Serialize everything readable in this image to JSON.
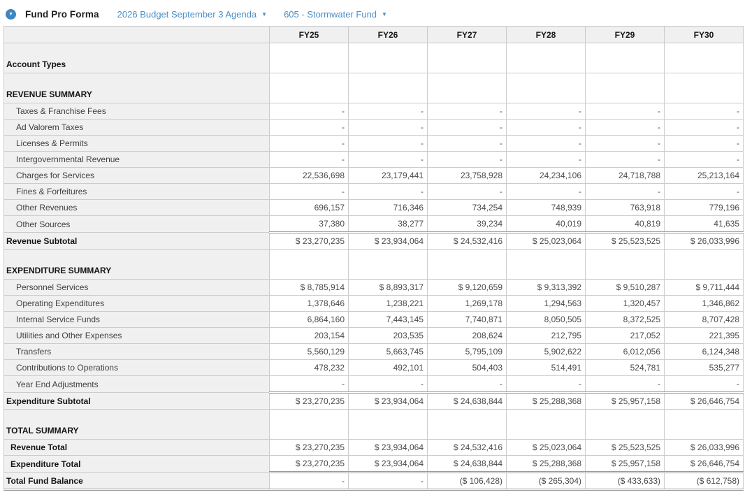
{
  "colors": {
    "accent_blue": "#4a8ec6",
    "icon_blue": "#3e86c2",
    "label_column_bg": "#f0f0f0",
    "grid_border": "#cccccc"
  },
  "header": {
    "title": "Fund Pro Forma",
    "collapse_icon": "chevron-down-circle",
    "dropdowns": [
      {
        "label": "2026 Budget September 3 Agenda"
      },
      {
        "label": "605 - Stormwater Fund"
      }
    ]
  },
  "table": {
    "columns": [
      "FY25",
      "FY26",
      "FY27",
      "FY28",
      "FY29",
      "FY30"
    ],
    "rows": [
      {
        "label": "Account Types",
        "type": "group",
        "values": [
          "",
          "",
          "",
          "",
          "",
          ""
        ]
      },
      {
        "label": "REVENUE SUMMARY",
        "type": "group",
        "values": [
          "",
          "",
          "",
          "",
          "",
          ""
        ]
      },
      {
        "label": "Taxes & Franchise Fees",
        "type": "data",
        "values": [
          "-",
          "-",
          "-",
          "-",
          "-",
          "-"
        ]
      },
      {
        "label": "Ad Valorem Taxes",
        "type": "data",
        "values": [
          "-",
          "-",
          "-",
          "-",
          "-",
          "-"
        ]
      },
      {
        "label": "Licenses & Permits",
        "type": "data",
        "values": [
          "-",
          "-",
          "-",
          "-",
          "-",
          "-"
        ]
      },
      {
        "label": "Intergovernmental Revenue",
        "type": "data",
        "values": [
          "-",
          "-",
          "-",
          "-",
          "-",
          "-"
        ]
      },
      {
        "label": "Charges for Services",
        "type": "data",
        "values": [
          "22,536,698",
          "23,179,441",
          "23,758,928",
          "24,234,106",
          "24,718,788",
          "25,213,164"
        ]
      },
      {
        "label": "Fines & Forfeitures",
        "type": "data",
        "values": [
          "-",
          "-",
          "-",
          "-",
          "-",
          "-"
        ]
      },
      {
        "label": "Other Revenues",
        "type": "data",
        "values": [
          "696,157",
          "716,346",
          "734,254",
          "748,939",
          "763,918",
          "779,196"
        ]
      },
      {
        "label": "Other Sources",
        "type": "data",
        "values": [
          "37,380",
          "38,277",
          "39,234",
          "40,019",
          "40,819",
          "41,635"
        ]
      },
      {
        "label": "Revenue Subtotal",
        "type": "subtotal",
        "values": [
          "$ 23,270,235",
          "$ 23,934,064",
          "$ 24,532,416",
          "$ 25,023,064",
          "$ 25,523,525",
          "$ 26,033,996"
        ]
      },
      {
        "label": "EXPENDITURE SUMMARY",
        "type": "group",
        "values": [
          "",
          "",
          "",
          "",
          "",
          ""
        ]
      },
      {
        "label": "Personnel Services",
        "type": "data",
        "values": [
          "$ 8,785,914",
          "$ 8,893,317",
          "$ 9,120,659",
          "$ 9,313,392",
          "$ 9,510,287",
          "$ 9,711,444"
        ]
      },
      {
        "label": "Operating Expenditures",
        "type": "data",
        "values": [
          "1,378,646",
          "1,238,221",
          "1,269,178",
          "1,294,563",
          "1,320,457",
          "1,346,862"
        ]
      },
      {
        "label": "Internal Service Funds",
        "type": "data",
        "values": [
          "6,864,160",
          "7,443,145",
          "7,740,871",
          "8,050,505",
          "8,372,525",
          "8,707,428"
        ]
      },
      {
        "label": "Utilities and Other Expenses",
        "type": "data",
        "values": [
          "203,154",
          "203,535",
          "208,624",
          "212,795",
          "217,052",
          "221,395"
        ]
      },
      {
        "label": "Transfers",
        "type": "data",
        "values": [
          "5,560,129",
          "5,663,745",
          "5,795,109",
          "5,902,622",
          "6,012,056",
          "6,124,348"
        ]
      },
      {
        "label": "Contributions to Operations",
        "type": "data",
        "values": [
          "478,232",
          "492,101",
          "504,403",
          "514,491",
          "524,781",
          "535,277"
        ]
      },
      {
        "label": "Year End Adjustments",
        "type": "data",
        "values": [
          "-",
          "-",
          "-",
          "-",
          "-",
          "-"
        ]
      },
      {
        "label": "Expenditure Subtotal",
        "type": "subtotal",
        "values": [
          "$ 23,270,235",
          "$ 23,934,064",
          "$ 24,638,844",
          "$ 25,288,368",
          "$ 25,957,158",
          "$ 26,646,754"
        ]
      },
      {
        "label": "TOTAL SUMMARY",
        "type": "group",
        "values": [
          "",
          "",
          "",
          "",
          "",
          ""
        ]
      },
      {
        "label": "Revenue Total",
        "type": "total",
        "values": [
          "$ 23,270,235",
          "$ 23,934,064",
          "$ 24,532,416",
          "$ 25,023,064",
          "$ 25,523,525",
          "$ 26,033,996"
        ]
      },
      {
        "label": "Expenditure Total",
        "type": "total",
        "values": [
          "$ 23,270,235",
          "$ 23,934,064",
          "$ 24,638,844",
          "$ 25,288,368",
          "$ 25,957,158",
          "$ 26,646,754"
        ]
      },
      {
        "label": "Total Fund Balance",
        "type": "grand",
        "values": [
          "-",
          "-",
          "($ 106,428)",
          "($ 265,304)",
          "($ 433,633)",
          "($ 612,758)"
        ]
      }
    ]
  }
}
